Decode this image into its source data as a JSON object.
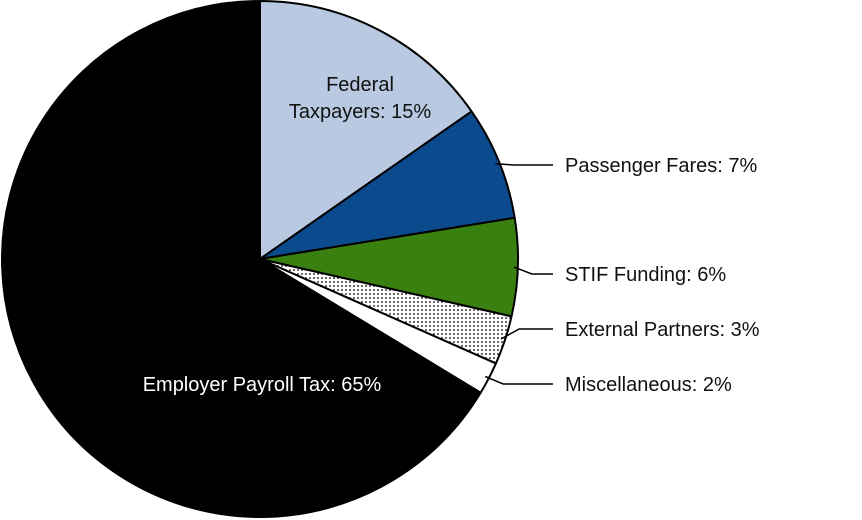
{
  "chart_data": {
    "type": "pie",
    "slices": [
      {
        "label": "Federal Taxpayers",
        "value": 15,
        "display": "Federal Taxpayers: 15%",
        "display_lines": [
          "Federal",
          "Taxpayers: 15%"
        ],
        "color": "#b8c9e1",
        "pattern": "none"
      },
      {
        "label": "Passenger Fares",
        "value": 7,
        "display": "Passenger Fares: 7%",
        "color": "#0b4a8c",
        "pattern": "none"
      },
      {
        "label": "STIF Funding",
        "value": 6,
        "display": "STIF Funding: 6%",
        "color": "#3a8010",
        "pattern": "none"
      },
      {
        "label": "External Partners",
        "value": 3,
        "display": "External Partners: 3%",
        "color": "#ffffff",
        "pattern": "dots"
      },
      {
        "label": "Miscellaneous",
        "value": 2,
        "display": "Miscellaneous: 2%",
        "color": "#ffffff",
        "pattern": "none"
      },
      {
        "label": "Employer Payroll Tax",
        "value": 65,
        "display": "Employer Payroll Tax: 65%",
        "color": "#000000",
        "pattern": "none"
      }
    ],
    "start_angle": "12 o'clock",
    "direction": "clockwise",
    "legend": "none"
  }
}
